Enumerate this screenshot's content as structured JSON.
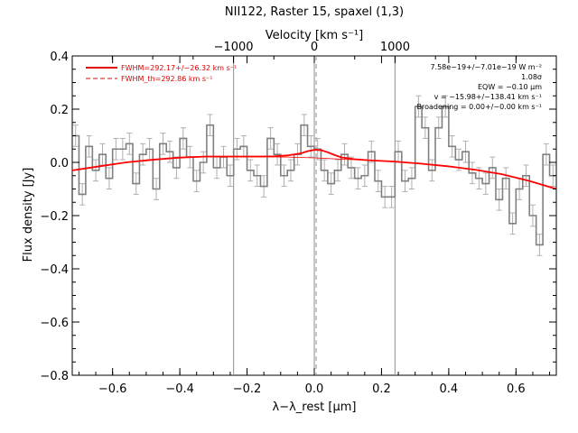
{
  "chart_data": {
    "type": "line",
    "title": "NII122, Raster 15, spaxel (1,3)",
    "xlabel": "λ−λ_rest [μm]",
    "ylabel": "Flux density [Jy]",
    "top_xlabel": "Velocity [km s⁻¹]",
    "xlim": [
      -0.72,
      0.72
    ],
    "ylim": [
      -0.8,
      0.4
    ],
    "grid": false,
    "x_ticks": [
      "−0.6",
      "−0.4",
      "−0.2",
      "0.0",
      "0.2",
      "0.4",
      "0.6"
    ],
    "y_ticks": [
      "−0.8",
      "−0.6",
      "−0.4",
      "−0.2",
      "0.0",
      "0.2",
      "0.4"
    ],
    "top_ticks": [
      "−1000",
      "0",
      "1000"
    ],
    "vertical_lines": [
      -0.24,
      0.0,
      0.24
    ],
    "dashed_line": 0.0,
    "legend": [
      {
        "label": "FWHM=292.17+/−26.32 km s⁻¹",
        "color": "#e00000",
        "style": "solid"
      },
      {
        "label": "FWHM_th=292.86 km s⁻¹",
        "color": "#e00000",
        "style": "dashed"
      }
    ],
    "annotations": [
      "7.58e−19+/−7.01e−19 W m⁻²",
      "1.08σ",
      "EQW = −0.10 μm",
      "v = −15.98+/−138.41 km s⁻¹",
      "Broadening = 0.00+/−0.00 km s⁻¹"
    ],
    "series": [
      {
        "name": "data",
        "color": "#808080",
        "x": [
          -0.72,
          -0.7,
          -0.68,
          -0.66,
          -0.64,
          -0.62,
          -0.6,
          -0.58,
          -0.56,
          -0.54,
          -0.52,
          -0.5,
          -0.48,
          -0.46,
          -0.44,
          -0.42,
          -0.4,
          -0.38,
          -0.36,
          -0.34,
          -0.32,
          -0.3,
          -0.28,
          -0.26,
          -0.24,
          -0.22,
          -0.2,
          -0.18,
          -0.16,
          -0.14,
          -0.12,
          -0.1,
          -0.08,
          -0.06,
          -0.04,
          -0.02,
          0.0,
          0.02,
          0.04,
          0.06,
          0.08,
          0.1,
          0.12,
          0.14,
          0.16,
          0.18,
          0.2,
          0.22,
          0.24,
          0.26,
          0.28,
          0.3,
          0.32,
          0.34,
          0.36,
          0.38,
          0.4,
          0.42,
          0.44,
          0.46,
          0.48,
          0.5,
          0.52,
          0.54,
          0.56,
          0.58,
          0.6,
          0.62,
          0.64,
          0.66,
          0.68,
          0.7
        ],
        "y": [
          0.1,
          -0.12,
          0.06,
          -0.03,
          0.03,
          -0.06,
          0.05,
          0.05,
          0.07,
          -0.08,
          0.03,
          0.05,
          -0.1,
          0.07,
          0.04,
          -0.02,
          0.09,
          0.02,
          -0.07,
          0.0,
          0.14,
          -0.02,
          0.02,
          -0.05,
          0.05,
          0.06,
          -0.03,
          -0.05,
          -0.09,
          0.09,
          0.03,
          -0.05,
          -0.03,
          0.03,
          0.14,
          0.06,
          0.05,
          -0.03,
          -0.08,
          -0.03,
          0.03,
          -0.02,
          -0.06,
          -0.05,
          0.04,
          -0.07,
          -0.13,
          -0.13,
          0.04,
          -0.07,
          -0.06,
          0.21,
          0.13,
          -0.03,
          0.13,
          0.21,
          0.06,
          0.01,
          0.04,
          -0.04,
          -0.06,
          -0.08,
          -0.02,
          -0.14,
          -0.06,
          -0.23,
          -0.1,
          -0.05,
          -0.2,
          -0.31,
          0.03,
          -0.05
        ],
        "errors": 0.04
      },
      {
        "name": "fit",
        "color": "#ff0000",
        "x": [
          -0.72,
          -0.64,
          -0.56,
          -0.48,
          -0.4,
          -0.32,
          -0.24,
          -0.16,
          -0.12,
          -0.08,
          -0.04,
          -0.02,
          0.0,
          0.02,
          0.04,
          0.06,
          0.08,
          0.12,
          0.16,
          0.24,
          0.32,
          0.4,
          0.48,
          0.56,
          0.64,
          0.72
        ],
        "y": [
          -0.03,
          -0.015,
          0.0,
          0.01,
          0.018,
          0.022,
          0.022,
          0.022,
          0.023,
          0.026,
          0.034,
          0.042,
          0.047,
          0.046,
          0.038,
          0.028,
          0.019,
          0.012,
          0.008,
          0.003,
          -0.005,
          -0.015,
          -0.028,
          -0.045,
          -0.07,
          -0.1
        ]
      },
      {
        "name": "continuum",
        "color": "#ff0000",
        "x": [
          -0.72,
          -0.64,
          -0.56,
          -0.48,
          -0.4,
          -0.32,
          -0.24,
          -0.16,
          -0.08,
          0.0,
          0.08,
          0.16,
          0.24,
          0.32,
          0.4,
          0.48,
          0.56,
          0.64,
          0.72
        ],
        "y": [
          -0.03,
          -0.015,
          0.0,
          0.01,
          0.018,
          0.021,
          0.021,
          0.021,
          0.02,
          0.017,
          0.012,
          0.008,
          0.003,
          -0.005,
          -0.015,
          -0.028,
          -0.045,
          -0.07,
          -0.1
        ]
      }
    ]
  }
}
